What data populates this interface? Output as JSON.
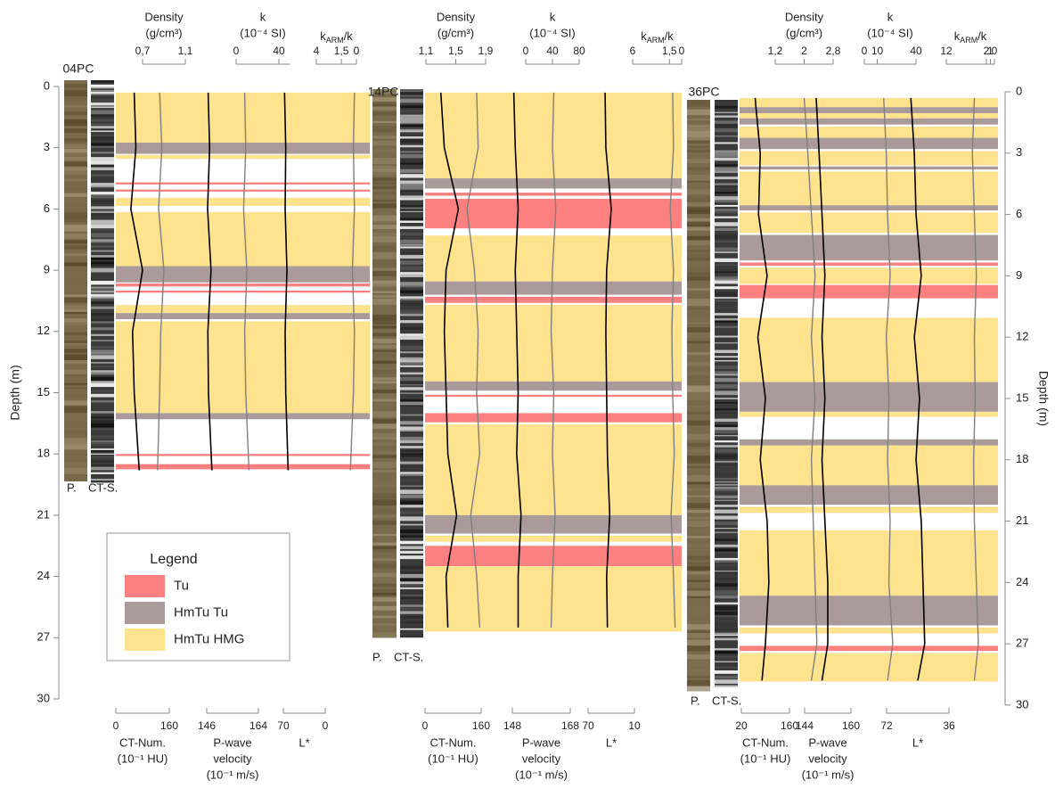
{
  "chart_data": {
    "type": "core-log",
    "y_axis_left": {
      "label": "Depth (m)",
      "ylim": [
        0,
        30
      ],
      "yticks": [
        0,
        3,
        6,
        9,
        12,
        15,
        18,
        21,
        24,
        27,
        30
      ]
    },
    "y_axis_right": {
      "label": "Depth (m)",
      "ylim": [
        0,
        30
      ],
      "yticks": [
        0,
        3,
        6,
        9,
        12,
        15,
        18,
        21,
        24,
        27,
        30
      ]
    },
    "legend": {
      "title": "Legend",
      "items": [
        {
          "name": "Tu",
          "color": "#fc8080"
        },
        {
          "name": "HmTu Tu",
          "color": "#ab9a9a"
        },
        {
          "name": "HmTu HMG",
          "color": "#fee38e"
        }
      ]
    },
    "cores": [
      {
        "name": "04PC",
        "column_labels": [
          "P.",
          "CT-S."
        ],
        "layers": [
          {
            "top": 0.3,
            "bottom": 2.75,
            "unit": "HmTu HMG"
          },
          {
            "top": 2.75,
            "bottom": 3.3,
            "unit": "HmTu Tu"
          },
          {
            "top": 3.35,
            "bottom": 3.55,
            "unit": "HmTu HMG"
          },
          {
            "top": 4.7,
            "bottom": 4.8,
            "unit": "Tu"
          },
          {
            "top": 5.05,
            "bottom": 5.15,
            "unit": "Tu"
          },
          {
            "top": 5.45,
            "bottom": 5.85,
            "unit": "HmTu HMG"
          },
          {
            "top": 6.15,
            "bottom": 8.8,
            "unit": "HmTu HMG"
          },
          {
            "top": 8.8,
            "bottom": 9.6,
            "unit": "HmTu Tu"
          },
          {
            "top": 9.65,
            "bottom": 9.8,
            "unit": "Tu"
          },
          {
            "top": 10.0,
            "bottom": 10.1,
            "unit": "Tu"
          },
          {
            "top": 10.7,
            "bottom": 11.1,
            "unit": "HmTu HMG"
          },
          {
            "top": 11.1,
            "bottom": 11.4,
            "unit": "HmTu Tu"
          },
          {
            "top": 11.5,
            "bottom": 16.0,
            "unit": "HmTu HMG"
          },
          {
            "top": 16.0,
            "bottom": 16.3,
            "unit": "HmTu Tu"
          },
          {
            "top": 18.0,
            "bottom": 18.1,
            "unit": "Tu"
          },
          {
            "top": 18.5,
            "bottom": 18.75,
            "unit": "Tu"
          }
        ],
        "depths": [
          0.3,
          3,
          6,
          9,
          12,
          15,
          18.8
        ],
        "axes": [
          {
            "title": [
              "Density",
              "(g/cm³)"
            ],
            "side": "top",
            "color": "#808080",
            "xlim": [
              0.7,
              1.1
            ],
            "xticks": [
              {
                "value": 0.7,
                "label": "0,7"
              },
              {
                "value": 1.1,
                "label": "1,1"
              }
            ],
            "values": [
              0.86,
              0.88,
              0.85,
              0.9,
              0.87,
              0.86,
              0.84
            ]
          },
          {
            "title": [
              "k",
              "(10⁻⁴ SI)"
            ],
            "side": "top",
            "color": "#808080",
            "xlim": [
              0,
              50
            ],
            "xticks": [
              0,
              40
            ],
            "values": [
              8,
              9,
              7,
              10,
              8,
              9,
              12
            ]
          },
          {
            "title_parts": [
              "k",
              "ARM",
              "/k"
            ],
            "side": "top",
            "color": "#808080",
            "xlim": [
              4,
              0
            ],
            "xticks": [
              4,
              {
                "value": 1.5,
                "label": "1,5"
              },
              0
            ],
            "values": [
              0.2,
              0.3,
              0.2,
              0.4,
              0.2,
              0.3,
              0.6
            ]
          },
          {
            "title": [
              "CT-Num.",
              "(10⁻¹ HU)"
            ],
            "side": "bottom",
            "color": "#000000",
            "xlim": [
              0,
              160
            ],
            "xticks": [
              0,
              160
            ],
            "values": [
              55,
              60,
              45,
              80,
              50,
              55,
              70
            ]
          },
          {
            "title": [
              "P-wave",
              "velocity",
              "(10⁻¹ m/s)"
            ],
            "side": "bottom",
            "color": "#000000",
            "xlim": [
              146,
              164
            ],
            "xticks": [
              146,
              164
            ],
            "values": [
              146.5,
              147,
              146.3,
              147.5,
              146.4,
              146.6,
              147.8
            ]
          },
          {
            "title": [
              "L*"
            ],
            "side": "bottom",
            "color": "#000000",
            "xlim": [
              70,
              0
            ],
            "xticks": [
              70,
              0
            ],
            "values": [
              68,
              66,
              67,
              64,
              67,
              66,
              62
            ]
          }
        ]
      },
      {
        "name": "14PC",
        "column_labels": [
          "P.",
          "CT-S."
        ],
        "layers": [
          {
            "top": 0.3,
            "bottom": 4.5,
            "unit": "HmTu HMG"
          },
          {
            "top": 4.5,
            "bottom": 5.0,
            "unit": "HmTu Tu"
          },
          {
            "top": 5.2,
            "bottom": 5.35,
            "unit": "Tu"
          },
          {
            "top": 5.5,
            "bottom": 6.95,
            "unit": "Tu"
          },
          {
            "top": 7.3,
            "bottom": 9.55,
            "unit": "HmTu HMG"
          },
          {
            "top": 9.55,
            "bottom": 10.2,
            "unit": "HmTu Tu"
          },
          {
            "top": 10.3,
            "bottom": 10.6,
            "unit": "Tu"
          },
          {
            "top": 10.7,
            "bottom": 14.45,
            "unit": "HmTu HMG"
          },
          {
            "top": 14.45,
            "bottom": 14.9,
            "unit": "HmTu Tu"
          },
          {
            "top": 15.1,
            "bottom": 15.2,
            "unit": "Tu"
          },
          {
            "top": 16.0,
            "bottom": 16.45,
            "unit": "Tu"
          },
          {
            "top": 16.55,
            "bottom": 21.0,
            "unit": "HmTu HMG"
          },
          {
            "top": 21.0,
            "bottom": 21.9,
            "unit": "HmTu Tu"
          },
          {
            "top": 22.0,
            "bottom": 22.3,
            "unit": "HmTu HMG"
          },
          {
            "top": 22.5,
            "bottom": 23.5,
            "unit": "Tu"
          },
          {
            "top": 23.5,
            "bottom": 26.7,
            "unit": "HmTu HMG"
          }
        ],
        "depths": [
          0.3,
          3,
          6,
          9,
          12,
          15,
          18,
          21,
          24,
          26.5
        ],
        "axes": [
          {
            "title": [
              "Density",
              "(g/cm³)"
            ],
            "side": "top",
            "color": "#808080",
            "xlim": [
              1.1,
              1.9
            ],
            "xticks": [
              {
                "value": 1.1,
                "label": "1,1"
              },
              {
                "value": 1.5,
                "label": "1,5"
              },
              {
                "value": 1.9,
                "label": "1,9"
              }
            ],
            "values": [
              1.78,
              1.8,
              1.65,
              1.75,
              1.8,
              1.78,
              1.82,
              1.7,
              1.78,
              1.82
            ]
          },
          {
            "title": [
              "k",
              "(10⁻⁴ SI)"
            ],
            "side": "top",
            "color": "#808080",
            "xlim": [
              0,
              80
            ],
            "xticks": [
              0,
              40,
              80
            ],
            "values": [
              42,
              40,
              45,
              40,
              38,
              42,
              40,
              44,
              40,
              38
            ]
          },
          {
            "title_parts": [
              "k",
              "ARM",
              "/k"
            ],
            "side": "top",
            "color": "#808080",
            "xlim": [
              6,
              0
            ],
            "xticks": [
              6,
              {
                "value": 1.5,
                "label": "1,5"
              },
              0
            ],
            "values": [
              1.1,
              1.0,
              1.4,
              1.0,
              1.2,
              1.1,
              0.9,
              1.3,
              1.0,
              0.8
            ]
          },
          {
            "title": [
              "CT-Num.",
              "(10⁻¹ HU)"
            ],
            "side": "bottom",
            "color": "#000000",
            "xlim": [
              0,
              160
            ],
            "xticks": [
              0,
              160
            ],
            "values": [
              45,
              55,
              95,
              60,
              55,
              60,
              65,
              90,
              60,
              65
            ]
          },
          {
            "title": [
              "P-wave",
              "velocity",
              "(10⁻¹ m/s)"
            ],
            "side": "bottom",
            "color": "#000000",
            "xlim": [
              148,
              168
            ],
            "xticks": [
              148,
              168
            ],
            "values": [
              148.5,
              149,
              150,
              149,
              149.5,
              150,
              149.5,
              151,
              150,
              150
            ]
          },
          {
            "title": [
              "L*"
            ],
            "side": "bottom",
            "color": "#000000",
            "xlim": [
              70,
              10
            ],
            "xticks": [
              70,
              10
            ],
            "values": [
              48,
              47,
              40,
              46,
              47,
              46,
              45,
              42,
              46,
              45
            ]
          }
        ]
      },
      {
        "name": "36PC",
        "column_labels": [
          "P.",
          "CT-S."
        ],
        "layers": [
          {
            "top": 0.3,
            "bottom": 0.75,
            "unit": "HmTu HMG"
          },
          {
            "top": 0.75,
            "bottom": 1.05,
            "unit": "HmTu Tu"
          },
          {
            "top": 1.05,
            "bottom": 1.3,
            "unit": "HmTu HMG"
          },
          {
            "top": 1.3,
            "bottom": 1.6,
            "unit": "HmTu Tu"
          },
          {
            "top": 1.7,
            "bottom": 2.25,
            "unit": "HmTu HMG"
          },
          {
            "top": 2.25,
            "bottom": 2.8,
            "unit": "HmTu Tu"
          },
          {
            "top": 2.9,
            "bottom": 3.6,
            "unit": "HmTu HMG"
          },
          {
            "top": 3.65,
            "bottom": 3.8,
            "unit": "HmTu Tu"
          },
          {
            "top": 3.9,
            "bottom": 5.55,
            "unit": "HmTu HMG"
          },
          {
            "top": 5.55,
            "bottom": 5.8,
            "unit": "HmTu Tu"
          },
          {
            "top": 5.9,
            "bottom": 6.9,
            "unit": "HmTu HMG"
          },
          {
            "top": 7.0,
            "bottom": 8.25,
            "unit": "HmTu Tu"
          },
          {
            "top": 8.35,
            "bottom": 8.5,
            "unit": "Tu"
          },
          {
            "top": 8.6,
            "bottom": 9.4,
            "unit": "HmTu HMG"
          },
          {
            "top": 9.45,
            "bottom": 10.1,
            "unit": "Tu"
          },
          {
            "top": 11.05,
            "bottom": 14.2,
            "unit": "HmTu HMG"
          },
          {
            "top": 14.2,
            "bottom": 15.65,
            "unit": "HmTu Tu"
          },
          {
            "top": 15.65,
            "bottom": 15.9,
            "unit": "HmTu HMG"
          },
          {
            "top": 17.0,
            "bottom": 17.3,
            "unit": "HmTu Tu"
          },
          {
            "top": 17.3,
            "bottom": 19.25,
            "unit": "HmTu HMG"
          },
          {
            "top": 19.25,
            "bottom": 20.2,
            "unit": "HmTu Tu"
          },
          {
            "top": 20.3,
            "bottom": 20.6,
            "unit": "HmTu HMG"
          },
          {
            "top": 21.45,
            "bottom": 24.65,
            "unit": "HmTu HMG"
          },
          {
            "top": 24.65,
            "bottom": 26.1,
            "unit": "HmTu Tu"
          },
          {
            "top": 26.2,
            "bottom": 26.5,
            "unit": "HmTu HMG"
          },
          {
            "top": 27.1,
            "bottom": 27.35,
            "unit": "Tu"
          },
          {
            "top": 27.45,
            "bottom": 28.85,
            "unit": "HmTu HMG"
          }
        ],
        "depths": [
          0.3,
          3,
          6,
          9,
          12,
          15,
          18,
          21,
          24,
          27,
          28.8
        ],
        "axes": [
          {
            "title": [
              "Density",
              "(g/cm³)"
            ],
            "side": "top",
            "color": "#808080",
            "xlim": [
              1.2,
              2.8
            ],
            "xticks": [
              {
                "value": 1.2,
                "label": "1,2"
              },
              2,
              {
                "value": 2.8,
                "label": "2,8"
              }
            ],
            "values": [
              2.0,
              2.1,
              2.2,
              2.3,
              2.2,
              2.3,
              2.2,
              2.25,
              2.3,
              2.35,
              2.2
            ]
          },
          {
            "title": [
              "k",
              "(10⁻⁴ SI)"
            ],
            "side": "top",
            "color": "#808080",
            "xlim": [
              0,
              40
            ],
            "xticks": [
              0,
              10,
              40
            ],
            "values": [
              15,
              17,
              18,
              20,
              17,
              19,
              18,
              20,
              19,
              22,
              18
            ]
          },
          {
            "title_parts": [
              "k",
              "ARM",
              "/k"
            ],
            "side": "top",
            "color": "#808080",
            "xlim": [
              12,
              0
            ],
            "xticks": [
              12,
              2,
              1,
              0
            ],
            "values": [
              5,
              5.5,
              5,
              4.5,
              5,
              4.8,
              5.2,
              5,
              4.5,
              4,
              5
            ]
          },
          {
            "title": [
              "CT-Num.",
              "(10⁻¹ HU)"
            ],
            "side": "bottom",
            "color": "#000000",
            "xlim": [
              20,
              160
            ],
            "xticks": [
              20,
              160
            ],
            "values": [
              60,
              75,
              70,
              95,
              68,
              90,
              75,
              95,
              100,
              90,
              80
            ]
          },
          {
            "title": [
              "P-wave",
              "velocity",
              "(10⁻¹ m/s)"
            ],
            "side": "bottom",
            "color": "#000000",
            "xlim": [
              144,
              160
            ],
            "xticks": [
              144,
              160
            ],
            "values": [
              148,
              149,
              150,
              151,
              150,
              151,
              150,
              151,
              152,
              152,
              150
            ]
          },
          {
            "title": [
              "L*"
            ],
            "side": "bottom",
            "color": "#000000",
            "xlim": [
              72,
              36
            ],
            "xticks": [
              72,
              36
            ],
            "values": [
              58,
              56,
              55,
              52,
              56,
              53,
              55,
              52,
              51,
              50,
              54
            ]
          }
        ]
      }
    ]
  }
}
